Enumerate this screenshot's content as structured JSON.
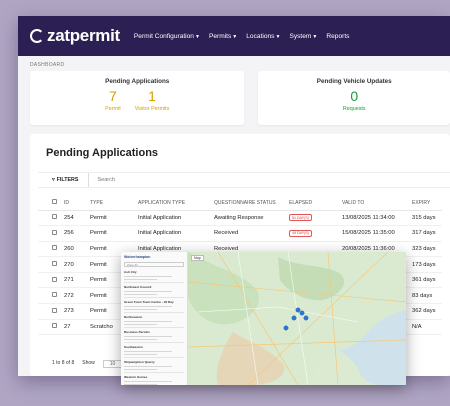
{
  "app": {
    "logo": "zatpermit",
    "nav": [
      {
        "label": "Permit Configuration",
        "chevron": true
      },
      {
        "label": "Permits",
        "chevron": true
      },
      {
        "label": "Locations",
        "chevron": true
      },
      {
        "label": "System",
        "chevron": true
      },
      {
        "label": "Reports",
        "chevron": false
      }
    ],
    "breadcrumb": "DASHBOARD"
  },
  "cards": {
    "pending_applications": {
      "title": "Pending Applications",
      "stats": [
        {
          "value": "7",
          "label": "Permit"
        },
        {
          "value": "1",
          "label": "Visitor Permits"
        }
      ]
    },
    "pending_vehicle_updates": {
      "title": "Pending Vehicle Updates",
      "stats": [
        {
          "value": "0",
          "label": "Requests"
        }
      ]
    }
  },
  "colors": {
    "navbar": "#2c1f54",
    "gold": "#d4a100",
    "green": "#1a9a3a",
    "badge": "#e05757"
  },
  "panel": {
    "title": "Pending Applications",
    "filters_label": "FILTERS",
    "search_placeholder": "Search",
    "columns": [
      "ID",
      "TYPE",
      "APPLICATION TYPE",
      "QUESTIONNAIRE STATUS",
      "ELAPSED",
      "VALID TO",
      "EXPIRY"
    ],
    "rows": [
      {
        "id": "254",
        "type": "Permit",
        "app_type": "Initial Application",
        "status": "Awaiting Response",
        "elapsed": "51 DAY(S)",
        "valid_to": "13/08/2025 11:34:00",
        "expiry": "315 days"
      },
      {
        "id": "256",
        "type": "Permit",
        "app_type": "Initial Application",
        "status": "Received",
        "elapsed": "49 DAY(S)",
        "valid_to": "15/08/2025 11:35:00",
        "expiry": "317 days"
      },
      {
        "id": "260",
        "type": "Permit",
        "app_type": "Initial Application",
        "status": "Received",
        "elapsed": "",
        "valid_to": "20/08/2025 11:36:00",
        "expiry": "323 days"
      },
      {
        "id": "270",
        "type": "Permit",
        "app_type": "",
        "status": "",
        "elapsed": "",
        "valid_to": "",
        "expiry": "173 days"
      },
      {
        "id": "271",
        "type": "Permit",
        "app_type": "",
        "status": "",
        "elapsed": "",
        "valid_to": "",
        "expiry": "361 days"
      },
      {
        "id": "272",
        "type": "Permit",
        "app_type": "",
        "status": "",
        "elapsed": "",
        "valid_to": "",
        "expiry": "83 days"
      },
      {
        "id": "273",
        "type": "Permit",
        "app_type": "",
        "status": "",
        "elapsed": "",
        "valid_to": "",
        "expiry": "362 days"
      },
      {
        "id": "27",
        "type": "Scratcho",
        "app_type": "",
        "status": "",
        "elapsed": "",
        "valid_to": "",
        "expiry": "N/A"
      }
    ],
    "pager": {
      "range": "1 to 8 of 8",
      "show_label": "Show",
      "show_value": "10"
    }
  },
  "map_overlay": {
    "logo": "Wolverhampton",
    "search_value": "Zone ID",
    "map_label": "Map",
    "groups": [
      "Ash City",
      "Northwest Council",
      "Green Town Town Centre - 30 Day",
      "Northeaston",
      "Business Permits",
      "Southeaston",
      "Shipwrighton Quarry",
      "Western Homes"
    ]
  }
}
